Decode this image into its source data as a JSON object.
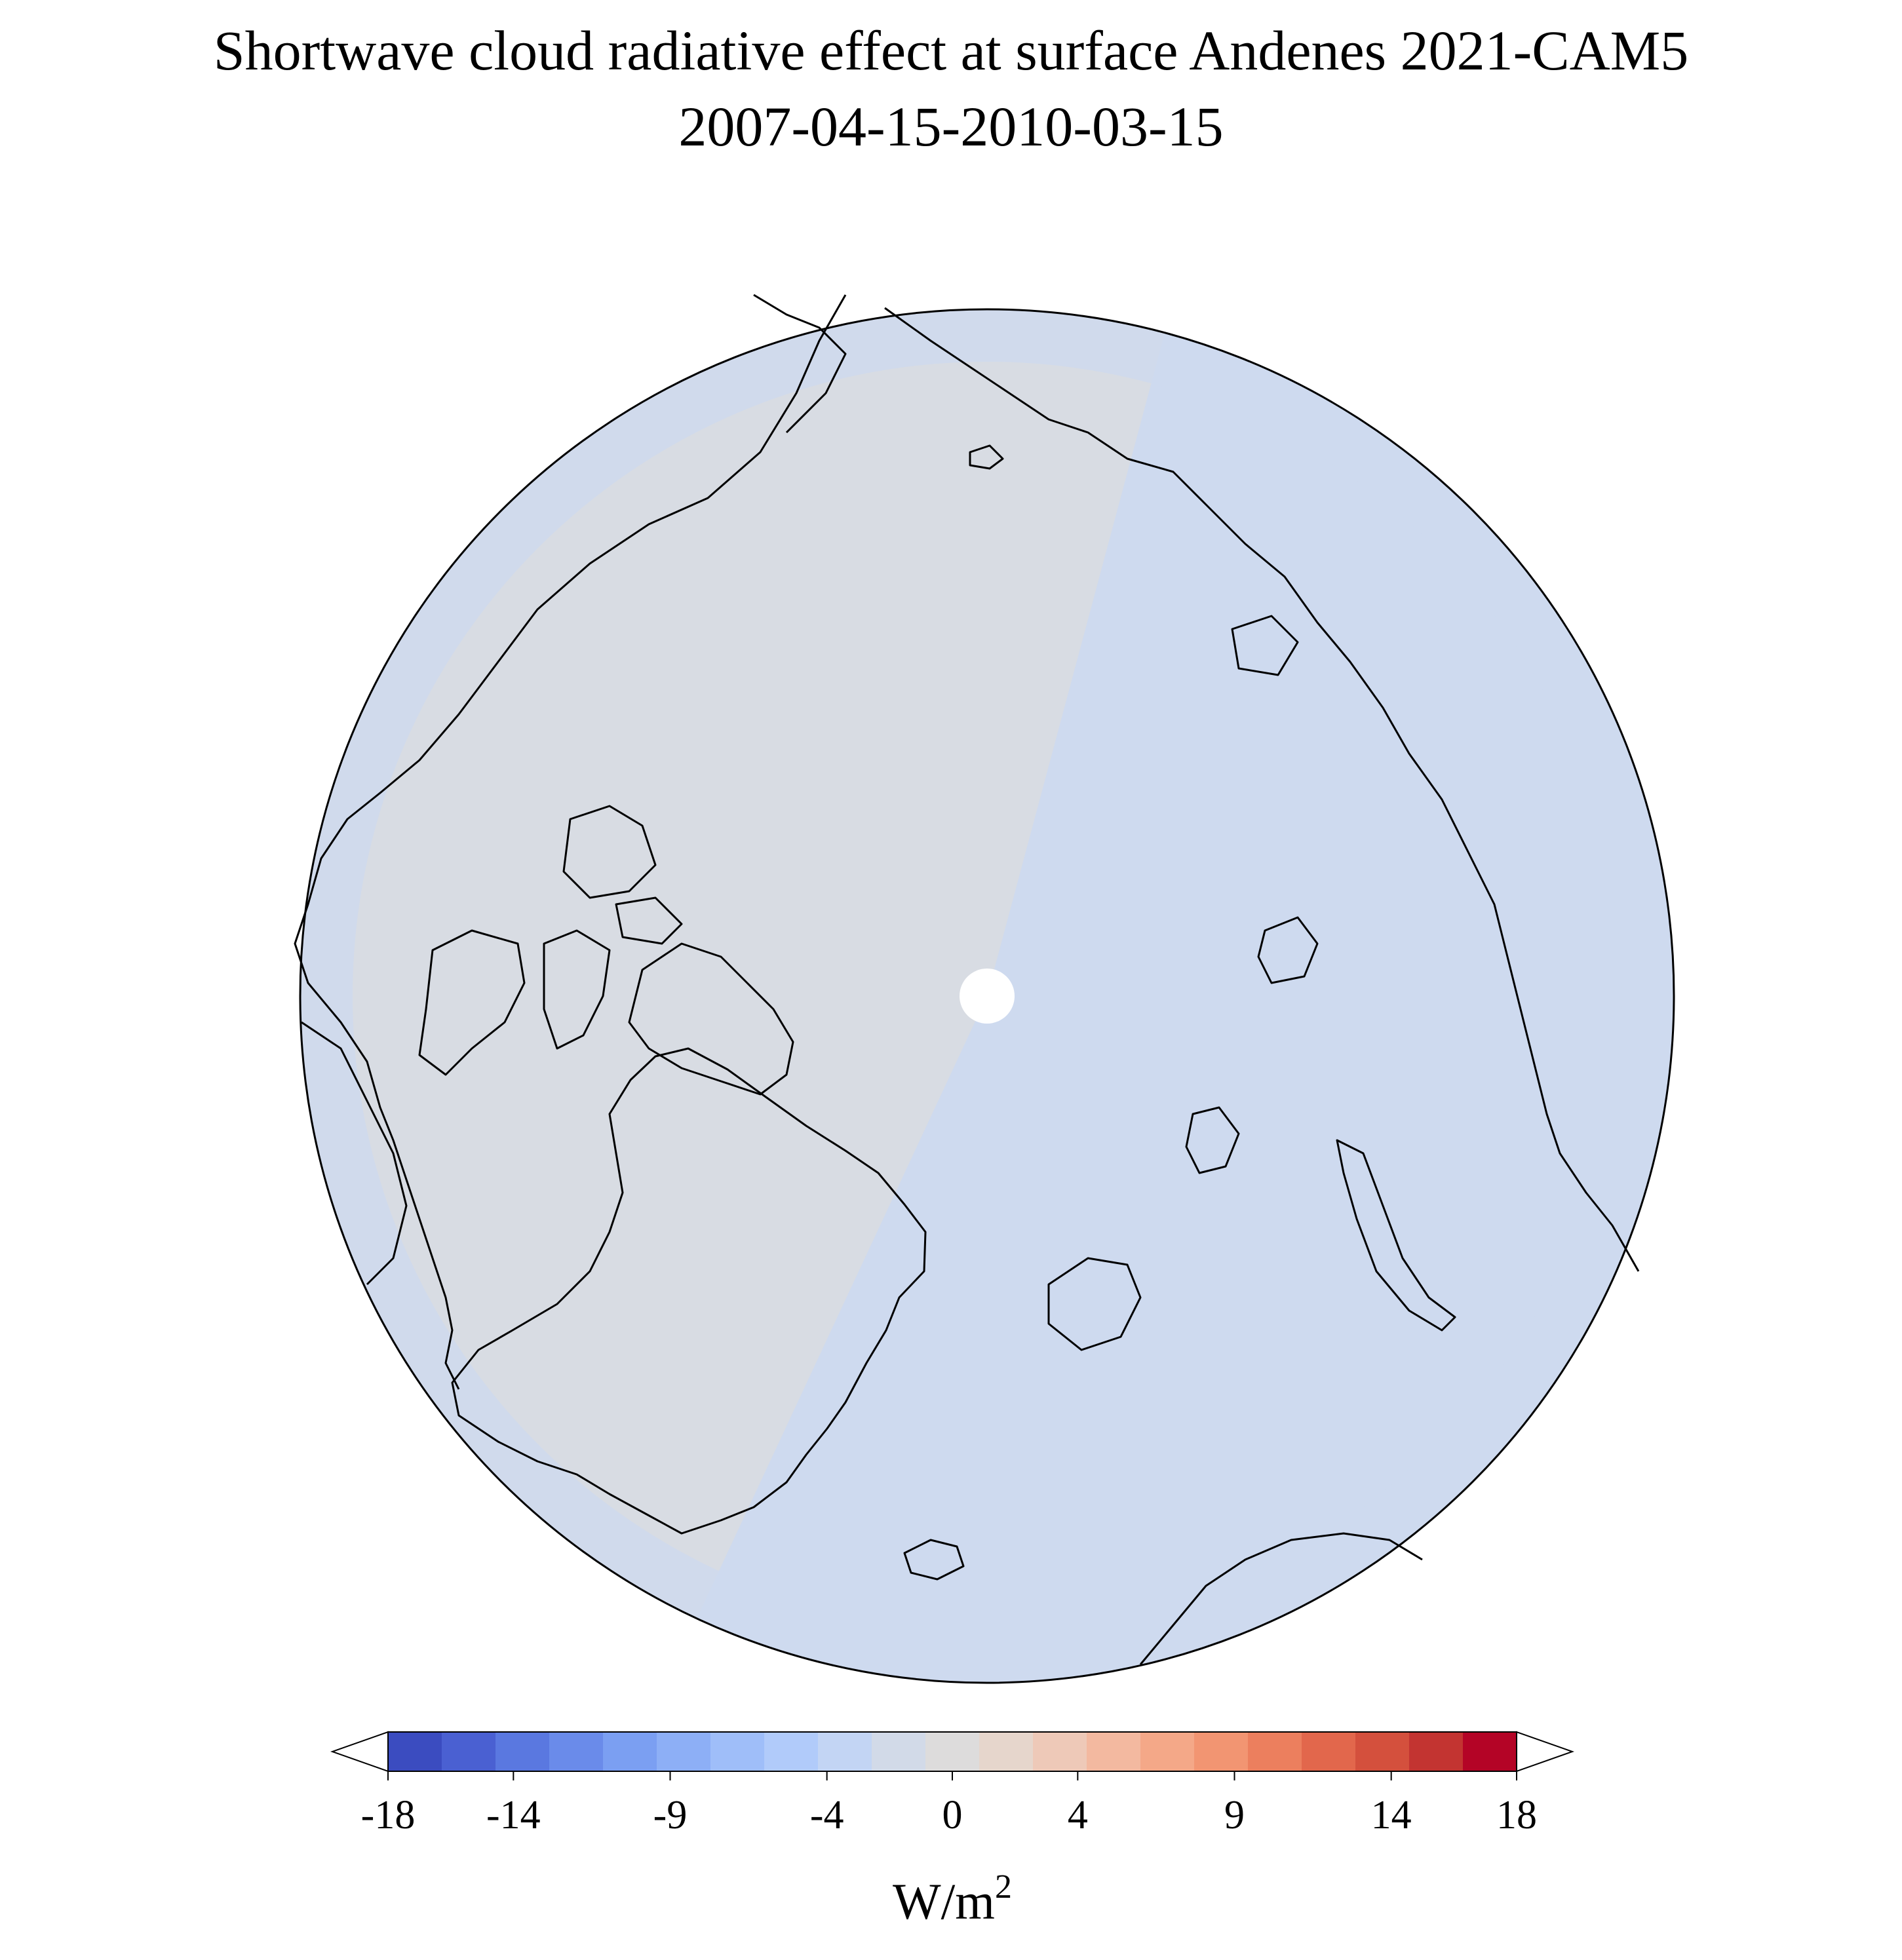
{
  "figure": {
    "title": "Shortwave cloud radiative effect at surface Andenes 2021-CAM5",
    "subtitle": "2007-04-15-2010-03-15"
  },
  "map": {
    "projection": "north-polar-stereographic",
    "background_color": "#d8dce3",
    "ocean_tint_color": "#cdd9ef",
    "coastline_color": "#000000",
    "pole_marker_color": "#ffffff"
  },
  "colorbar": {
    "unit": "W/m",
    "unit_superscript": "2",
    "min": -18,
    "max": 18,
    "extend": "both",
    "tick_labels": [
      "-18",
      "-14",
      "-9",
      "-4",
      "0",
      "4",
      "9",
      "14",
      "18"
    ],
    "tick_values": [
      -18,
      -14,
      -9,
      -4,
      0,
      4,
      9,
      14,
      18
    ],
    "colors": [
      "#3b4cc0",
      "#4a60d2",
      "#5a78e0",
      "#6a8bea",
      "#7b9ff2",
      "#8daff6",
      "#9fbef9",
      "#b1cbfa",
      "#c3d5f4",
      "#d2dae8",
      "#dddcdc",
      "#e6d6cc",
      "#eec9b8",
      "#f3b9a0",
      "#f4a888",
      "#f29572",
      "#ec7f5e",
      "#e2674c",
      "#d4503d",
      "#c33431",
      "#b40426"
    ]
  }
}
